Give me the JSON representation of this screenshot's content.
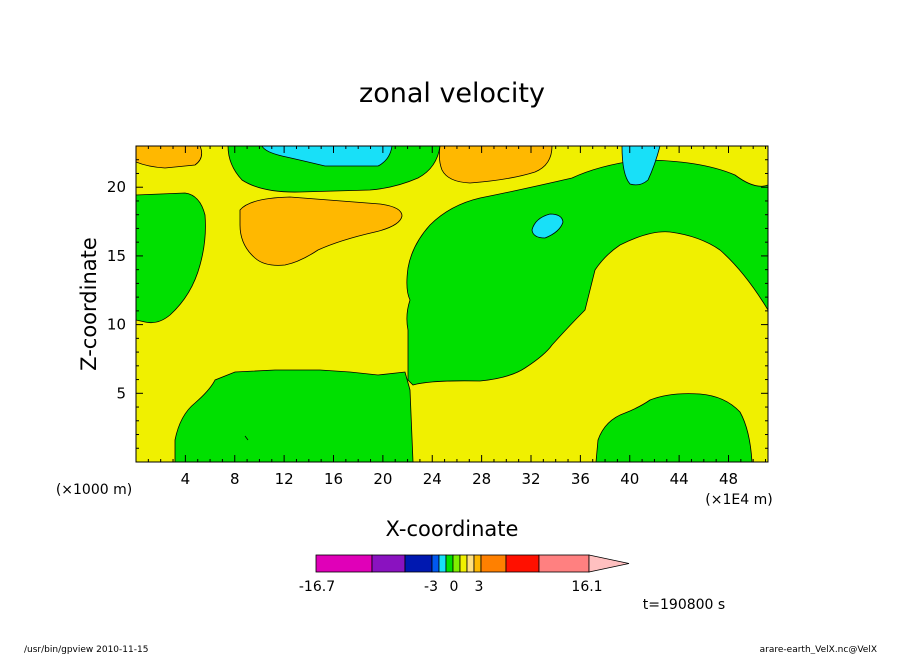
{
  "chart_data": {
    "type": "heatmap",
    "title": "zonal velocity",
    "xlabel": "X-coordinate",
    "ylabel": "Z-coordinate",
    "x_unit_label": "(×1E4 m)",
    "z_unit_label": "(×1000 m)",
    "xlim": [
      0,
      51.2
    ],
    "ylim": [
      0,
      23
    ],
    "x_ticks": [
      "4",
      "8",
      "12",
      "16",
      "20",
      "24",
      "28",
      "32",
      "36",
      "40",
      "44",
      "48"
    ],
    "y_ticks": [
      "5",
      "10",
      "15",
      "20"
    ],
    "time_label": "t=190800 s",
    "colorbar": {
      "labels": [
        "-16.7",
        "-3",
        "0",
        "3",
        "16.1"
      ],
      "min": -16.7,
      "max": 16.1,
      "colors": [
        "#e000b8",
        "#8a12c0",
        "#0018b0",
        "#0058f0",
        "#18e0f8",
        "#00e000",
        "#80f000",
        "#f0f000",
        "#ffe080",
        "#ffb800",
        "#ff8000",
        "#ff1000",
        "#ff8080",
        "#ffc0c0"
      ]
    },
    "regions": [
      {
        "level": "-3..-1",
        "color": "#00e000"
      },
      {
        "level": "-1..1",
        "color": "#f0f000"
      },
      {
        "level": "1..3",
        "color": "#ffb800"
      },
      {
        "level": "-5..-3",
        "color": "#18e0f8"
      }
    ]
  },
  "footer": {
    "left": "/usr/bin/gpview   2010-11-15",
    "right": "arare-earth_VelX.nc@VelX"
  }
}
